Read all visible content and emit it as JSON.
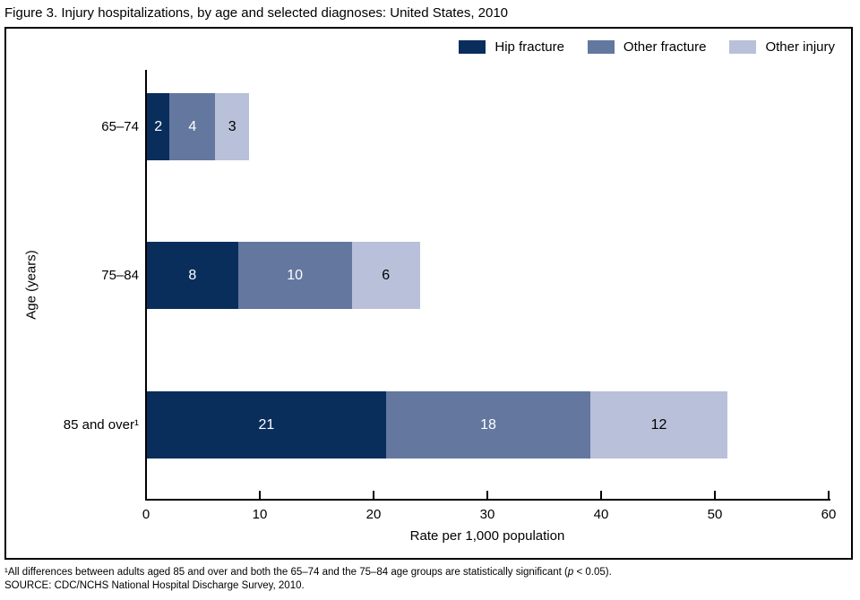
{
  "title": "Figure 3. Injury hospitalizations, by age and selected diagnoses: United States, 2010",
  "chart_data": {
    "type": "bar",
    "orientation": "horizontal",
    "stacked": true,
    "categories": [
      "65–74",
      "75–84",
      "85 and over¹"
    ],
    "series": [
      {
        "name": "Hip fracture",
        "color": "#0a2e5c",
        "label_color": "#ffffff",
        "values": [
          2,
          8,
          21
        ]
      },
      {
        "name": "Other fracture",
        "color": "#63779f",
        "label_color": "#ffffff",
        "values": [
          4,
          10,
          18
        ]
      },
      {
        "name": "Other injury",
        "color": "#b9c0d9",
        "label_color": "#000000",
        "values": [
          3,
          6,
          12
        ]
      }
    ],
    "xlabel": "Rate per 1,000 population",
    "ylabel": "Age (years)",
    "xlim": [
      0,
      60
    ],
    "x_ticks": [
      0,
      10,
      20,
      30,
      40,
      50,
      60
    ],
    "legend_position": "top-right",
    "grid": false
  },
  "footnotes": {
    "line1_part1": "¹All differences between adults aged 85 and over and both the 65–74 and the 75–84 age groups are statistically significant (",
    "line1_italic": "p",
    "line1_part2": " < 0.05).",
    "line2": "SOURCE: CDC/NCHS National Hospital Discharge Survey, 2010."
  }
}
